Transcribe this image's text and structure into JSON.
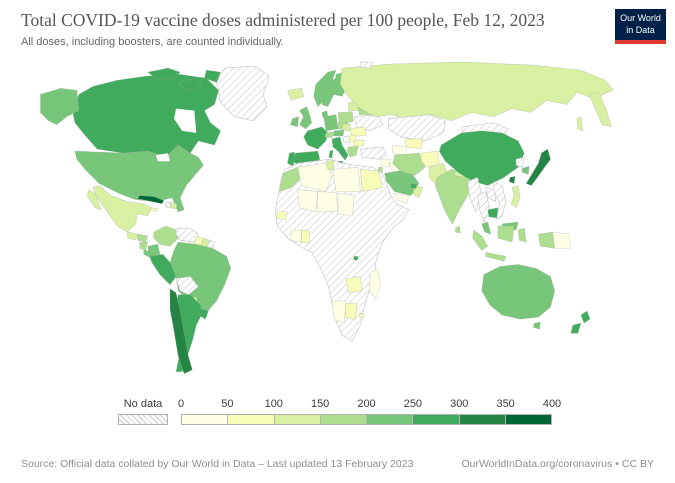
{
  "header": {
    "title": "Total COVID-19 vaccine doses administered per 100 people, Feb 12, 2023",
    "subtitle": "All doses, including boosters, are counted individually."
  },
  "logo": {
    "line1": "Our World",
    "line2": "in Data",
    "bg_color": "#002147",
    "stripe_color": "#dc3a2f"
  },
  "footer": {
    "source": "Source: Official data collated by Our World in Data – Last updated 13 February 2023",
    "credit": "OurWorldInData.org/coronavirus • CC BY"
  },
  "chart_data": {
    "type": "choropleth",
    "title": "Total COVID-19 vaccine doses administered per 100 people, Feb 12, 2023",
    "subtitle": "All doses, including boosters, are counted individually.",
    "unit": "doses per 100 people",
    "legend": {
      "no_data_label": "No data",
      "bins": [
        0,
        50,
        100,
        150,
        200,
        250,
        300,
        350,
        400
      ],
      "colors": [
        "#ffffe5",
        "#f7fcb9",
        "#d9f0a3",
        "#addd8e",
        "#78c679",
        "#41ab5d",
        "#238443",
        "#006837"
      ],
      "no_data_pattern": "diagonal-hatch",
      "position": "bottom"
    },
    "countries": [
      {
        "name": "Canada",
        "value": 250
      },
      {
        "name": "United States",
        "value": 203
      },
      {
        "name": "Greenland",
        "value": null
      },
      {
        "name": "Mexico",
        "value": 145
      },
      {
        "name": "Guatemala",
        "value": 130
      },
      {
        "name": "Honduras",
        "value": 160
      },
      {
        "name": "Nicaragua",
        "value": 160
      },
      {
        "name": "Costa Rica",
        "value": 215
      },
      {
        "name": "Panama",
        "value": 205
      },
      {
        "name": "Cuba",
        "value": 388
      },
      {
        "name": "Jamaica",
        "value": 65
      },
      {
        "name": "Haiti",
        "value": null
      },
      {
        "name": "Dominican Republic",
        "value": 105
      },
      {
        "name": "Colombia",
        "value": 175
      },
      {
        "name": "Venezuela",
        "value": null
      },
      {
        "name": "Guyana",
        "value": 85
      },
      {
        "name": "Suriname",
        "value": 120
      },
      {
        "name": "French Guiana",
        "value": null
      },
      {
        "name": "Ecuador",
        "value": 220
      },
      {
        "name": "Peru",
        "value": 265
      },
      {
        "name": "Brazil",
        "value": 230
      },
      {
        "name": "Bolivia",
        "value": null
      },
      {
        "name": "Paraguay",
        "value": 105
      },
      {
        "name": "Chile",
        "value": 320
      },
      {
        "name": "Argentina",
        "value": 255
      },
      {
        "name": "Uruguay",
        "value": 255
      },
      {
        "name": "Iceland",
        "value": 140
      },
      {
        "name": "United Kingdom",
        "value": 224
      },
      {
        "name": "Ireland",
        "value": 225
      },
      {
        "name": "Portugal",
        "value": 272
      },
      {
        "name": "Spain",
        "value": 255
      },
      {
        "name": "France",
        "value": 256
      },
      {
        "name": "Germany",
        "value": 232
      },
      {
        "name": "Switzerland",
        "value": 195
      },
      {
        "name": "Austria",
        "value": 225
      },
      {
        "name": "Czechia",
        "value": 170
      },
      {
        "name": "Poland",
        "value": 150
      },
      {
        "name": "Lithuania",
        "value": 145
      },
      {
        "name": "Belarus",
        "value": 165
      },
      {
        "name": "Ukraine",
        "value": null
      },
      {
        "name": "Romania",
        "value": 85
      },
      {
        "name": "Hungary",
        "value": 140
      },
      {
        "name": "Serbia",
        "value": 90
      },
      {
        "name": "Bosnia and Herzegovina",
        "value": null
      },
      {
        "name": "Bulgaria",
        "value": 55
      },
      {
        "name": "Greece",
        "value": 195
      },
      {
        "name": "Italy",
        "value": 255
      },
      {
        "name": "Norway",
        "value": 235
      },
      {
        "name": "Sweden",
        "value": 215
      },
      {
        "name": "Finland",
        "value": 210
      },
      {
        "name": "Denmark",
        "value": 230
      },
      {
        "name": "Russia",
        "value": 125
      },
      {
        "name": "Svalbard",
        "value": null
      },
      {
        "name": "Turkey",
        "value": null
      },
      {
        "name": "Syria",
        "value": 15
      },
      {
        "name": "Iraq",
        "value": 45
      },
      {
        "name": "Israel",
        "value": 185
      },
      {
        "name": "Saudi Arabia",
        "value": 210
      },
      {
        "name": "Yemen",
        "value": 10
      },
      {
        "name": "Oman",
        "value": 105
      },
      {
        "name": "United Arab Emirates",
        "value": 290
      },
      {
        "name": "Iran",
        "value": 185
      },
      {
        "name": "Afghanistan",
        "value": 60
      },
      {
        "name": "Pakistan",
        "value": 135
      },
      {
        "name": "Kazakhstan",
        "value": null
      },
      {
        "name": "Uzbekistan",
        "value": 95
      },
      {
        "name": "Turkmenistan",
        "value": 45
      },
      {
        "name": "Mongolia",
        "value": null
      },
      {
        "name": "China",
        "value": 255
      },
      {
        "name": "Japan",
        "value": 310
      },
      {
        "name": "North Korea",
        "value": null
      },
      {
        "name": "South Korea",
        "value": 215
      },
      {
        "name": "Taiwan",
        "value": 305
      },
      {
        "name": "India",
        "value": 155
      },
      {
        "name": "Nepal",
        "value": 140
      },
      {
        "name": "Bangladesh",
        "value": 205
      },
      {
        "name": "Sri Lanka",
        "value": 185
      },
      {
        "name": "Myanmar",
        "value": null
      },
      {
        "name": "Thailand",
        "value": null
      },
      {
        "name": "Laos",
        "value": null
      },
      {
        "name": "Vietnam",
        "value": null
      },
      {
        "name": "Cambodia",
        "value": 270
      },
      {
        "name": "Malaysia",
        "value": 215
      },
      {
        "name": "Philippines",
        "value": 145
      },
      {
        "name": "Indonesia",
        "value": 160
      },
      {
        "name": "Papua New Guinea",
        "value": 25
      },
      {
        "name": "Morocco",
        "value": 150
      },
      {
        "name": "Algeria",
        "value": 30
      },
      {
        "name": "Tunisia",
        "value": 110
      },
      {
        "name": "Libya",
        "value": 45
      },
      {
        "name": "Egypt",
        "value": 95
      },
      {
        "name": "Mali",
        "value": 25
      },
      {
        "name": "Niger",
        "value": 20
      },
      {
        "name": "Chad",
        "value": 15
      },
      {
        "name": "Senegal",
        "value": 50
      },
      {
        "name": "Ghana",
        "value": 65
      },
      {
        "name": "Cote d'Ivoire",
        "value": 40
      },
      {
        "name": "Zambia",
        "value": 60
      },
      {
        "name": "Namibia",
        "value": 45
      },
      {
        "name": "Botswana",
        "value": 75
      },
      {
        "name": "Eswatini",
        "value": 85
      },
      {
        "name": "Rwanda",
        "value": 290
      },
      {
        "name": "Madagascar",
        "value": 45
      },
      {
        "name": "Australia",
        "value": 245
      },
      {
        "name": "New Zealand",
        "value": 260
      }
    ]
  }
}
